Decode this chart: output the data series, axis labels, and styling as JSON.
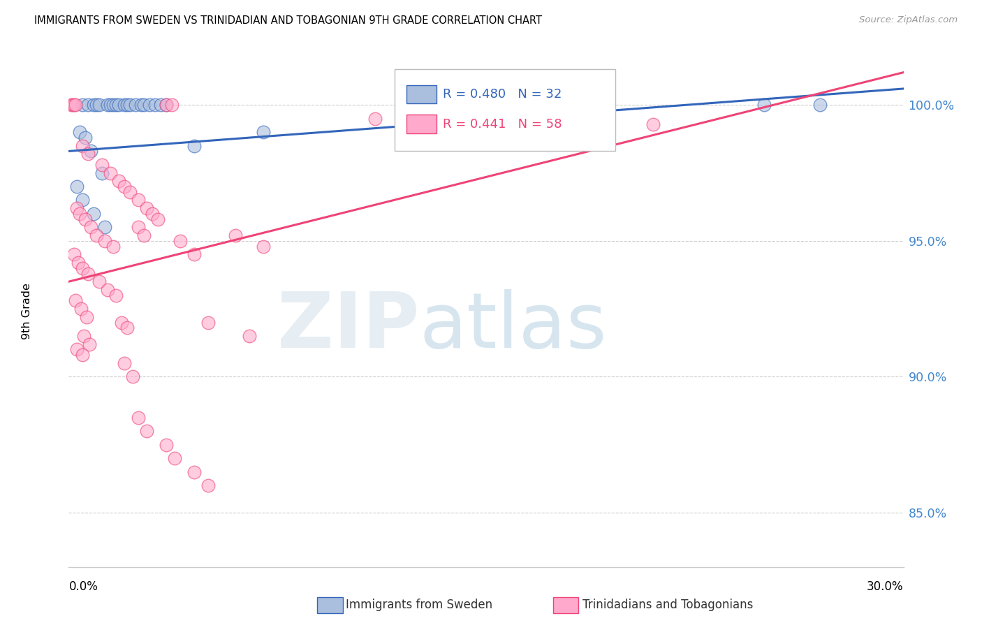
{
  "title": "IMMIGRANTS FROM SWEDEN VS TRINIDADIAN AND TOBAGONIAN 9TH GRADE CORRELATION CHART",
  "source": "Source: ZipAtlas.com",
  "ylabel": "9th Grade",
  "y_ticks": [
    85.0,
    90.0,
    95.0,
    100.0
  ],
  "y_tick_labels": [
    "85.0%",
    "90.0%",
    "95.0%",
    "100.0%"
  ],
  "xlim": [
    0.0,
    30.0
  ],
  "ylim": [
    83.0,
    101.8
  ],
  "blue_R": 0.48,
  "blue_N": 32,
  "pink_R": 0.441,
  "pink_N": 58,
  "blue_fill": "#aabedd",
  "blue_edge": "#3366bb",
  "pink_fill": "#ffaacc",
  "pink_edge": "#ee4477",
  "blue_line": "#3366bb",
  "pink_line": "#ee4477",
  "legend_blue": "Immigrants from Sweden",
  "legend_pink": "Trinidadians and Tobagonians",
  "blue_trendline_x": [
    0.0,
    30.0
  ],
  "blue_trendline_y": [
    98.3,
    100.6
  ],
  "pink_trendline_x": [
    0.0,
    30.0
  ],
  "pink_trendline_y": [
    93.5,
    101.2
  ],
  "blue_points_x": [
    0.5,
    0.7,
    0.9,
    1.0,
    1.1,
    1.4,
    1.5,
    1.6,
    1.7,
    1.8,
    2.0,
    2.1,
    2.2,
    2.4,
    2.6,
    2.7,
    2.9,
    3.1,
    3.3,
    3.5,
    0.4,
    0.6,
    0.8,
    1.2,
    0.3,
    0.5,
    0.9,
    1.3,
    4.5,
    7.0,
    25.0,
    27.0
  ],
  "blue_points_y": [
    100.0,
    100.0,
    100.0,
    100.0,
    100.0,
    100.0,
    100.0,
    100.0,
    100.0,
    100.0,
    100.0,
    100.0,
    100.0,
    100.0,
    100.0,
    100.0,
    100.0,
    100.0,
    100.0,
    100.0,
    99.0,
    98.8,
    98.3,
    97.5,
    97.0,
    96.5,
    96.0,
    95.5,
    98.5,
    99.0,
    100.0,
    100.0
  ],
  "pink_points_x": [
    0.1,
    0.15,
    0.2,
    0.25,
    3.5,
    3.7,
    11.0,
    21.0,
    0.5,
    0.7,
    1.2,
    1.5,
    1.8,
    2.0,
    2.2,
    2.5,
    0.3,
    0.4,
    0.6,
    0.8,
    1.0,
    1.3,
    1.6,
    0.2,
    0.35,
    0.5,
    0.7,
    1.1,
    1.4,
    1.7,
    0.25,
    0.45,
    0.65,
    2.8,
    3.0,
    3.2,
    2.5,
    2.7,
    1.9,
    2.1,
    0.55,
    0.75,
    4.0,
    4.5,
    6.0,
    7.0,
    2.0,
    2.3,
    2.5,
    2.8,
    5.0,
    6.5,
    3.5,
    3.8,
    4.5,
    5.0,
    0.3,
    0.5
  ],
  "pink_points_y": [
    100.0,
    100.0,
    100.0,
    100.0,
    100.0,
    100.0,
    99.5,
    99.3,
    98.5,
    98.2,
    97.8,
    97.5,
    97.2,
    97.0,
    96.8,
    96.5,
    96.2,
    96.0,
    95.8,
    95.5,
    95.2,
    95.0,
    94.8,
    94.5,
    94.2,
    94.0,
    93.8,
    93.5,
    93.2,
    93.0,
    92.8,
    92.5,
    92.2,
    96.2,
    96.0,
    95.8,
    95.5,
    95.2,
    92.0,
    91.8,
    91.5,
    91.2,
    95.0,
    94.5,
    95.2,
    94.8,
    90.5,
    90.0,
    88.5,
    88.0,
    92.0,
    91.5,
    87.5,
    87.0,
    86.5,
    86.0,
    91.0,
    90.8
  ]
}
